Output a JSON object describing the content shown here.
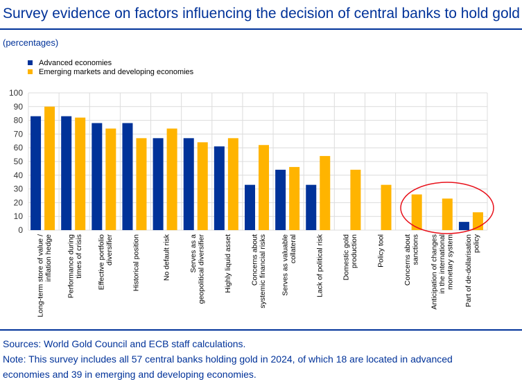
{
  "title": "Survey evidence on factors influencing the decision of central banks to hold gold",
  "subtitle": "(percentages)",
  "sources": "Sources: World Gold Council and ECB staff calculations.",
  "note_line1": "Note: This survey includes all 57 central banks holding gold in 2024, of which 18 are located in advanced",
  "note_line2": "economies and 39 in emerging and developing economies.",
  "chart_data": {
    "type": "bar",
    "ylim": [
      0,
      100
    ],
    "yticks": [
      0,
      10,
      20,
      30,
      40,
      50,
      60,
      70,
      80,
      90,
      100
    ],
    "grid": true,
    "legend_position": "top-left",
    "categories": [
      [
        "Long-term store of value /",
        "inflation hedge"
      ],
      [
        "Performance during",
        "times of crisis"
      ],
      [
        "Effective portfolio",
        "diversifier"
      ],
      [
        "Historical position"
      ],
      [
        "No default risk"
      ],
      [
        "Serves as a",
        "geopolitical diversifier"
      ],
      [
        "Highly liquid asset"
      ],
      [
        "Concerns about",
        "systemic financial risks"
      ],
      [
        "Serves as valuable",
        "collateral"
      ],
      [
        "Lack of political risk"
      ],
      [
        "Domestic gold",
        "production"
      ],
      [
        "Policy tool"
      ],
      [
        "Concerns about",
        "sanctions"
      ],
      [
        "Anticipation of changes",
        "in the international",
        "monetary system"
      ],
      [
        "Part of de-dollarisation",
        "policy"
      ]
    ],
    "series": [
      {
        "name": "Advanced economies",
        "color": "#003299",
        "values": [
          83,
          83,
          78,
          78,
          67,
          67,
          61,
          33,
          44,
          33,
          null,
          null,
          null,
          null,
          6
        ]
      },
      {
        "name": "Emerging markets and developing economies",
        "color": "#FFB400",
        "values": [
          90,
          82,
          74,
          67,
          74,
          64,
          67,
          62,
          46,
          54,
          44,
          33,
          26,
          23,
          13
        ]
      }
    ],
    "annotation": {
      "shape": "ellipse",
      "color": "#E8101A",
      "highlights": [
        "Concerns about sanctions",
        "Anticipation of changes in the international monetary system",
        "Part of de-dollarisation policy"
      ]
    }
  }
}
